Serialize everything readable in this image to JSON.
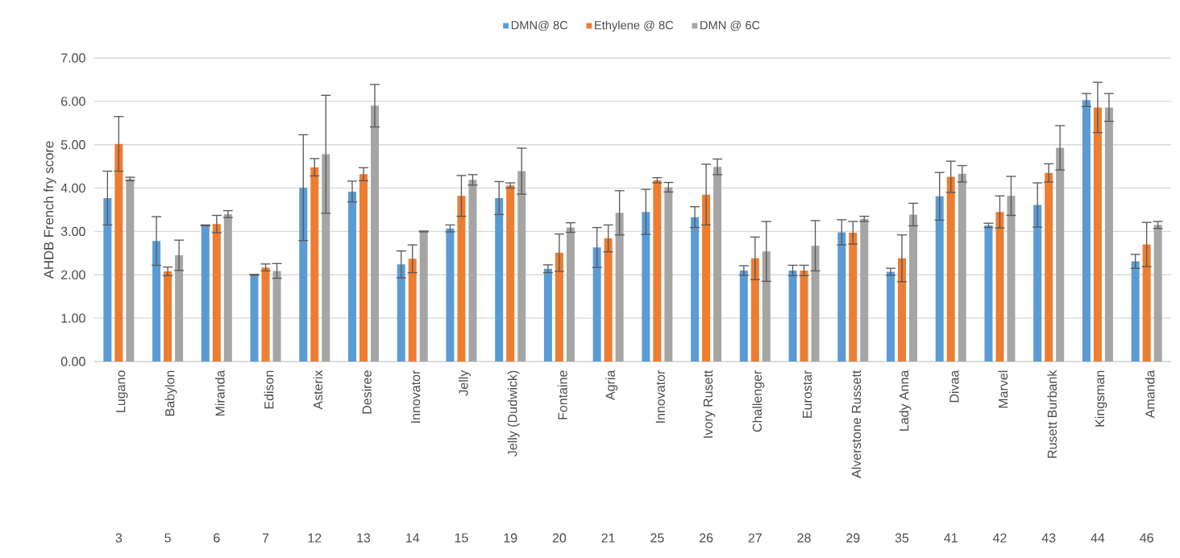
{
  "chart_data": {
    "type": "bar",
    "ylabel": "AHDB French fry score",
    "categories": [
      "Lugano",
      "Babylon",
      "Miranda",
      "Edison",
      "Asterix",
      "Desiree",
      "Innovator",
      "Jelly",
      "Jelly (Dudwick)",
      "Fontaine",
      "Agria",
      "Innovator",
      "Ivory Rusett",
      "Challenger",
      "Eurostar",
      "Alverstone Russett",
      "Lady Anna",
      "Divaa",
      "Marvel",
      "Rusett Burbank",
      "Kingsman",
      "Amanda"
    ],
    "annotations": [
      "3",
      "5",
      "6",
      "7",
      "12",
      "13",
      "14",
      "15",
      "19",
      "20",
      "21",
      "25",
      "26",
      "27",
      "28",
      "29",
      "35",
      "41",
      "42",
      "43",
      "44",
      "46"
    ],
    "series": [
      {
        "name": "DMN@ 8C",
        "color": "#5b9bd5",
        "values": [
          3.77,
          2.78,
          3.14,
          2.0,
          4.01,
          3.92,
          2.24,
          3.07,
          3.77,
          2.14,
          2.63,
          3.45,
          3.33,
          2.1,
          2.1,
          2.98,
          2.07,
          3.81,
          3.14,
          3.61,
          6.03,
          2.31
        ],
        "errors": [
          0.62,
          0.56,
          0.01,
          0.01,
          1.22,
          0.24,
          0.31,
          0.08,
          0.38,
          0.09,
          0.46,
          0.52,
          0.24,
          0.11,
          0.12,
          0.29,
          0.08,
          0.55,
          0.05,
          0.51,
          0.15,
          0.16
        ]
      },
      {
        "name": "Ethylene @ 8C",
        "color": "#ed7d31",
        "values": [
          5.02,
          2.08,
          3.17,
          2.17,
          4.48,
          4.32,
          2.37,
          3.82,
          4.06,
          2.51,
          2.84,
          4.18,
          3.85,
          2.38,
          2.1,
          2.97,
          2.38,
          4.26,
          3.45,
          4.35,
          5.86,
          2.7
        ],
        "errors": [
          0.63,
          0.1,
          0.2,
          0.08,
          0.2,
          0.15,
          0.32,
          0.47,
          0.06,
          0.43,
          0.31,
          0.06,
          0.7,
          0.49,
          0.12,
          0.26,
          0.54,
          0.36,
          0.37,
          0.21,
          0.58,
          0.51
        ]
      },
      {
        "name": "DMN @ 6C",
        "color": "#a5a5a5",
        "values": [
          4.21,
          2.45,
          3.4,
          2.09,
          4.78,
          5.9,
          3.0,
          4.19,
          4.39,
          3.09,
          3.43,
          4.02,
          4.49,
          2.54,
          2.67,
          3.29,
          3.39,
          4.33,
          3.82,
          4.93,
          5.86,
          3.15
        ],
        "errors": [
          0.04,
          0.35,
          0.08,
          0.17,
          1.36,
          0.49,
          0.01,
          0.12,
          0.53,
          0.11,
          0.51,
          0.11,
          0.18,
          0.69,
          0.58,
          0.06,
          0.26,
          0.19,
          0.45,
          0.51,
          0.32,
          0.08
        ]
      }
    ],
    "ylim": [
      0,
      7
    ],
    "yticks": [
      {
        "value": 0,
        "label": "0.00"
      },
      {
        "value": 1,
        "label": "1.00"
      },
      {
        "value": 2,
        "label": "2.00"
      },
      {
        "value": 3,
        "label": "3.00"
      },
      {
        "value": 4,
        "label": "4.00"
      },
      {
        "value": 5,
        "label": "5.00"
      },
      {
        "value": 6,
        "label": "6.00"
      },
      {
        "value": 7,
        "label": "7.00"
      }
    ],
    "grid": "y",
    "legend": "top"
  }
}
